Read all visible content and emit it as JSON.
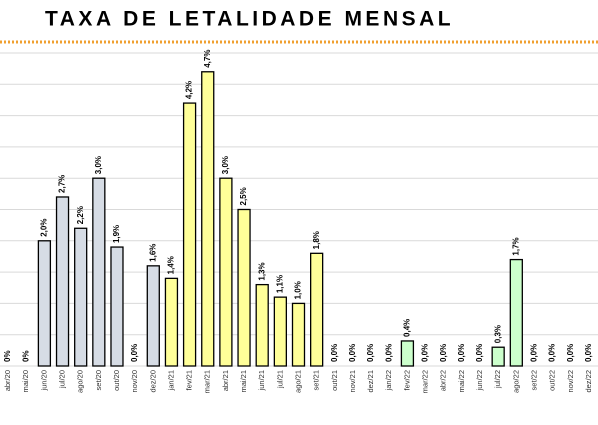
{
  "chart_data": {
    "type": "bar",
    "title": "TAXA DE LETALIDADE MENSAL",
    "categories": [
      "abr/20",
      "mai/20",
      "jun/20",
      "jul/20",
      "ago/20",
      "set/20",
      "out/20",
      "nov/20",
      "dez/20",
      "jan/21",
      "fev/21",
      "mar/21",
      "abr/21",
      "mai/21",
      "jun/21",
      "jul/21",
      "ago/21",
      "set/21",
      "out/21",
      "nov/21",
      "dez/21",
      "jan/22",
      "fev/22",
      "mar/22",
      "abr/22",
      "mai/22",
      "jun/22",
      "jul/22",
      "ago/22",
      "set/22",
      "out/22",
      "nov/22",
      "dez/22"
    ],
    "values": [
      0,
      0,
      2.0,
      2.7,
      2.2,
      3.0,
      1.9,
      0.0,
      1.6,
      1.4,
      4.2,
      4.7,
      3.0,
      2.5,
      1.3,
      1.1,
      1.0,
      1.8,
      0.0,
      0.0,
      0.0,
      0.0,
      0.4,
      0.0,
      0.0,
      0.0,
      0.0,
      0.3,
      1.7,
      0.0,
      0.0,
      0.0,
      0.0
    ],
    "value_labels": [
      "0%",
      "0%",
      "2,0%",
      "2,7%",
      "2,2%",
      "3,0%",
      "1,9%",
      "0,0%",
      "1,6%",
      "1,4%",
      "4,2%",
      "4,7%",
      "3,0%",
      "2,5%",
      "1,3%",
      "1,1%",
      "1,0%",
      "1,8%",
      "0,0%",
      "0,0%",
      "0,0%",
      "0,0%",
      "0,4%",
      "0,0%",
      "0,0%",
      "0,0%",
      "0,0%",
      "0,3%",
      "1,7%",
      "0,0%",
      "0,0%",
      "0,0%",
      "0,0%"
    ],
    "colors": [
      "#d6dce5",
      "#d6dce5",
      "#d6dce5",
      "#d6dce5",
      "#d6dce5",
      "#d6dce5",
      "#d6dce5",
      "#d6dce5",
      "#d6dce5",
      "#ffff99",
      "#ffff99",
      "#ffff99",
      "#ffff99",
      "#ffff99",
      "#ffff99",
      "#ffff99",
      "#ffff99",
      "#ffff99",
      "#ffff99",
      "#ffff99",
      "#ffff99",
      "#ccffcc",
      "#ccffcc",
      "#ccffcc",
      "#ccffcc",
      "#ccffcc",
      "#ccffcc",
      "#ccffcc",
      "#ccffcc",
      "#ccffcc",
      "#ccffcc",
      "#ccffcc",
      "#ccffcc"
    ],
    "ylim": [
      0,
      5
    ],
    "yticks": [
      0,
      0.5,
      1,
      1.5,
      2,
      2.5,
      3,
      3.5,
      4,
      4.5,
      5
    ],
    "grid": true
  }
}
